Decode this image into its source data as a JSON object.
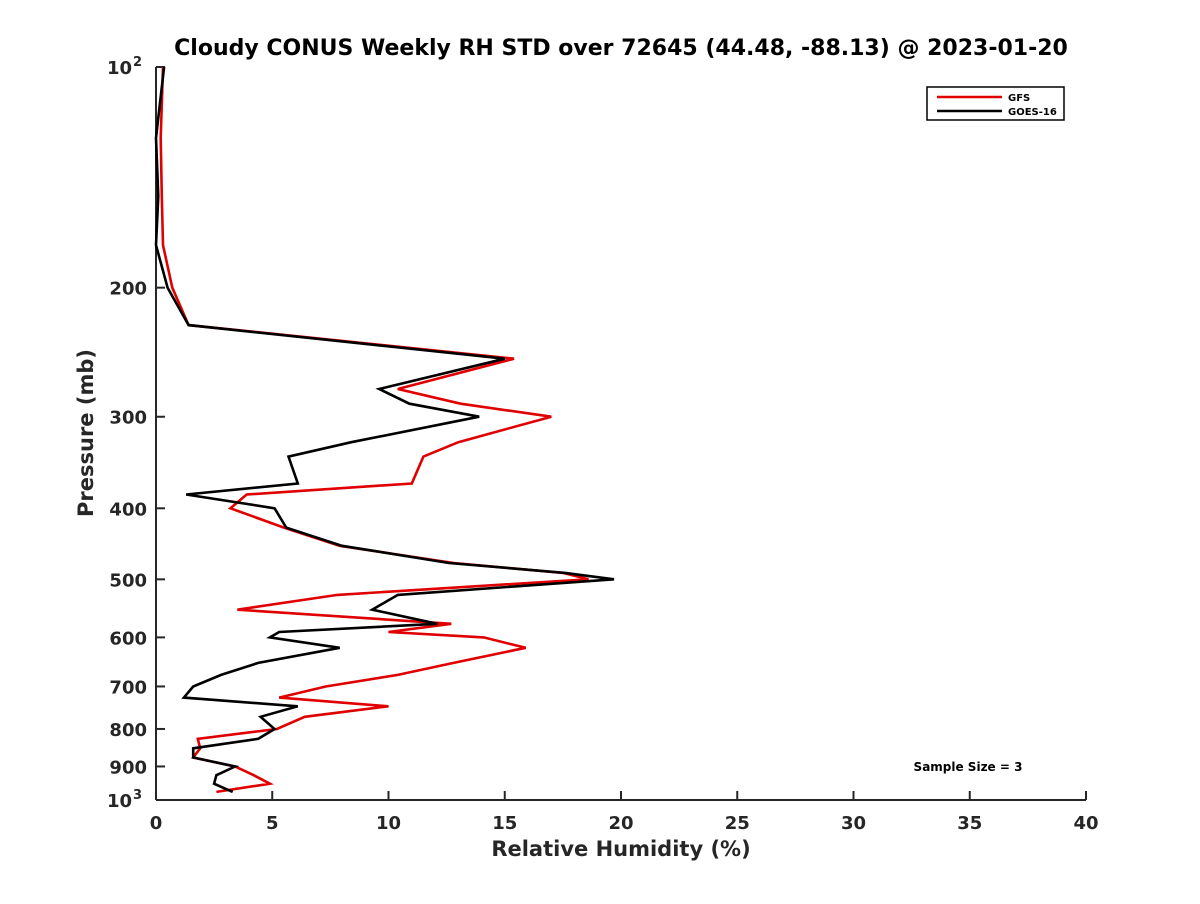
{
  "chart_data": {
    "type": "line",
    "title": "Cloudy CONUS Weekly RH STD over 72645 (44.48, -88.13) @ 2023-01-20",
    "xlabel": "Relative Humidity (%)",
    "ylabel": "Pressure (mb)",
    "xlim": [
      0,
      40
    ],
    "ylim": [
      100,
      1000
    ],
    "y_scale": "log",
    "y_reversed": true,
    "grid": false,
    "legend_position": "top-right",
    "x_ticks": [
      0,
      5,
      10,
      15,
      20,
      25,
      30,
      35,
      40
    ],
    "y_ticks": [
      {
        "value": 100,
        "base": "10",
        "exp": "2"
      },
      {
        "value": 200,
        "label": "200"
      },
      {
        "value": 300,
        "label": "300"
      },
      {
        "value": 400,
        "label": "400"
      },
      {
        "value": 500,
        "label": "500"
      },
      {
        "value": 600,
        "label": "600"
      },
      {
        "value": 700,
        "label": "700"
      },
      {
        "value": 800,
        "label": "800"
      },
      {
        "value": 900,
        "label": "900"
      },
      {
        "value": 1000,
        "base": "10",
        "exp": "3"
      }
    ],
    "annotation": "Sample Size = 3",
    "series": [
      {
        "name": "GFS",
        "color": "#e00000",
        "points": [
          [
            0.3,
            100
          ],
          [
            0.2,
            125
          ],
          [
            0.25,
            150
          ],
          [
            0.3,
            175
          ],
          [
            0.7,
            200
          ],
          [
            1.4,
            225
          ],
          [
            15.4,
            250
          ],
          [
            10.4,
            275
          ],
          [
            13.1,
            288
          ],
          [
            17.0,
            300
          ],
          [
            13.0,
            325
          ],
          [
            11.5,
            340
          ],
          [
            11.0,
            370
          ],
          [
            3.9,
            383
          ],
          [
            3.2,
            400
          ],
          [
            5.5,
            425
          ],
          [
            7.9,
            450
          ],
          [
            12.8,
            475
          ],
          [
            17.5,
            490
          ],
          [
            18.6,
            500
          ],
          [
            7.8,
            525
          ],
          [
            3.5,
            550
          ],
          [
            12.7,
            575
          ],
          [
            10.0,
            590
          ],
          [
            14.1,
            600
          ],
          [
            15.9,
            620
          ],
          [
            12.8,
            650
          ],
          [
            10.4,
            675
          ],
          [
            7.3,
            700
          ],
          [
            5.3,
            725
          ],
          [
            10.0,
            745
          ],
          [
            6.4,
            770
          ],
          [
            5.2,
            800
          ],
          [
            1.8,
            825
          ],
          [
            1.9,
            850
          ],
          [
            1.6,
            875
          ],
          [
            3.4,
            900
          ],
          [
            4.2,
            925
          ],
          [
            4.9,
            950
          ],
          [
            2.6,
            975
          ]
        ]
      },
      {
        "name": "GOES-16",
        "color": "#000000",
        "points": [
          [
            0.35,
            100
          ],
          [
            0.0,
            125
          ],
          [
            0.1,
            150
          ],
          [
            0.0,
            175
          ],
          [
            0.5,
            200
          ],
          [
            1.4,
            225
          ],
          [
            15.0,
            250
          ],
          [
            9.6,
            275
          ],
          [
            10.9,
            288
          ],
          [
            13.9,
            300
          ],
          [
            8.4,
            325
          ],
          [
            5.7,
            340
          ],
          [
            6.1,
            370
          ],
          [
            1.3,
            383
          ],
          [
            5.1,
            400
          ],
          [
            5.6,
            425
          ],
          [
            8.0,
            450
          ],
          [
            12.6,
            475
          ],
          [
            17.6,
            490
          ],
          [
            19.7,
            500
          ],
          [
            10.4,
            525
          ],
          [
            9.3,
            550
          ],
          [
            12.1,
            575
          ],
          [
            5.3,
            590
          ],
          [
            4.9,
            600
          ],
          [
            7.9,
            620
          ],
          [
            4.4,
            650
          ],
          [
            2.8,
            675
          ],
          [
            1.6,
            700
          ],
          [
            1.2,
            725
          ],
          [
            6.1,
            745
          ],
          [
            4.5,
            770
          ],
          [
            5.1,
            800
          ],
          [
            4.4,
            825
          ],
          [
            1.6,
            850
          ],
          [
            1.6,
            875
          ],
          [
            3.4,
            900
          ],
          [
            2.6,
            925
          ],
          [
            2.5,
            950
          ],
          [
            3.3,
            975
          ]
        ]
      }
    ]
  }
}
